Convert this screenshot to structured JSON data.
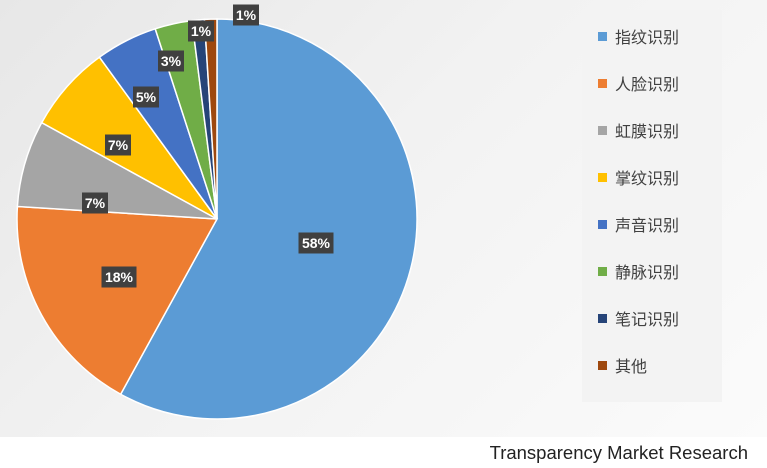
{
  "chart_data": {
    "type": "pie",
    "title": "",
    "categories": [
      "指纹识别",
      "人脸识别",
      "虹膜识别",
      "掌纹识别",
      "声音识别",
      "静脉识别",
      "笔记识别",
      "其他"
    ],
    "values": [
      58,
      18,
      7,
      7,
      5,
      3,
      1,
      1
    ],
    "labels": [
      "58%",
      "18%",
      "7%",
      "7%",
      "5%",
      "3%",
      "1%",
      "1%"
    ],
    "colors": [
      "#5B9BD5",
      "#ED7D31",
      "#A5A5A5",
      "#FFC000",
      "#4472C4",
      "#70AD47",
      "#264478",
      "#9E480E"
    ],
    "label_box_color": "#404040",
    "label_text_color": "#ffffff",
    "legend_position": "right"
  },
  "source": "Transparency Market Research"
}
